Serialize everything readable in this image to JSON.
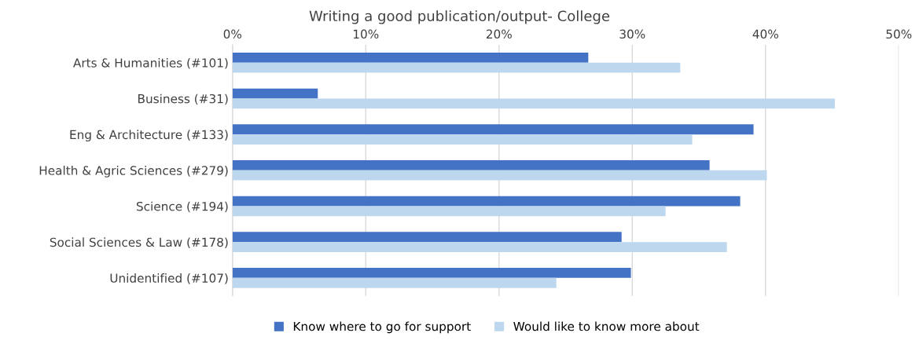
{
  "chart_data": {
    "type": "bar",
    "orientation": "horizontal",
    "title": "Writing a good publication/output- College",
    "categories": [
      "Arts & Humanities (#101)",
      "Business (#31)",
      "Eng & Architecture (#133)",
      "Health & Agric Sciences (#279)",
      "Science (#194)",
      "Social Sciences & Law (#178)",
      "Unidentified (#107)"
    ],
    "series": [
      {
        "name": "Know where to go for support",
        "color": "#4472c4",
        "values": [
          26.7,
          6.4,
          39.1,
          35.8,
          38.1,
          29.2,
          29.9
        ]
      },
      {
        "name": "Would like to know more about",
        "color": "#bdd7ee",
        "values": [
          33.6,
          45.2,
          34.5,
          40.1,
          32.5,
          37.1,
          24.3
        ]
      }
    ],
    "xlim": [
      0,
      50
    ],
    "xticks": [
      {
        "value": 0,
        "label": "0%"
      },
      {
        "value": 10,
        "label": "10%"
      },
      {
        "value": 20,
        "label": "20%"
      },
      {
        "value": 30,
        "label": "30%"
      },
      {
        "value": 40,
        "label": "40%"
      },
      {
        "value": 50,
        "label": "50%"
      }
    ],
    "grid": "x",
    "legend": "bottom"
  }
}
